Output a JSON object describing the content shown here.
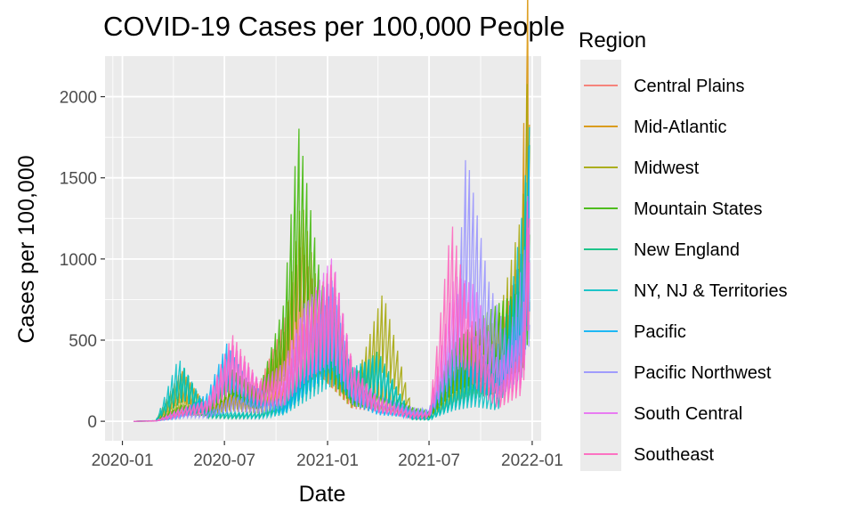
{
  "chart_data": {
    "type": "line",
    "title": "COVID-19 Cases per 100,000 People",
    "xlabel": "Date",
    "ylabel": "Cases per 100,000",
    "x_range": [
      "2019-12-01",
      "2022-01-17"
    ],
    "ylim": [
      -120,
      2250
    ],
    "x_ticks": [
      "2020-01",
      "2020-07",
      "2021-01",
      "2021-07",
      "2022-01"
    ],
    "y_ticks": [
      0,
      500,
      1000,
      1500,
      2000
    ],
    "grid": true,
    "legend_title": "Region",
    "legend_position": "right",
    "series": [
      {
        "name": "Central Plains",
        "color": "#F8766D",
        "points": [
          [
            "2020-01-21",
            0
          ],
          [
            "2020-03-01",
            2
          ],
          [
            "2020-04-15",
            60
          ],
          [
            "2020-06-01",
            50
          ],
          [
            "2020-07-15",
            180
          ],
          [
            "2020-09-01",
            160
          ],
          [
            "2020-10-15",
            420
          ],
          [
            "2020-11-15",
            750
          ],
          [
            "2020-12-20",
            500
          ],
          [
            "2021-02-15",
            140
          ],
          [
            "2021-04-10",
            100
          ],
          [
            "2021-06-01",
            45
          ],
          [
            "2021-07-01",
            30
          ],
          [
            "2021-08-15",
            380
          ],
          [
            "2021-09-20",
            380
          ],
          [
            "2021-11-01",
            330
          ],
          [
            "2021-12-15",
            750
          ],
          [
            "2021-12-27",
            1050
          ]
        ]
      },
      {
        "name": "Mid-Atlantic",
        "color": "#D89000",
        "points": [
          [
            "2020-01-21",
            0
          ],
          [
            "2020-03-01",
            3
          ],
          [
            "2020-04-15",
            220
          ],
          [
            "2020-06-01",
            60
          ],
          [
            "2020-07-15",
            110
          ],
          [
            "2020-09-01",
            90
          ],
          [
            "2020-10-15",
            180
          ],
          [
            "2020-11-20",
            400
          ],
          [
            "2021-01-10",
            620
          ],
          [
            "2021-02-15",
            230
          ],
          [
            "2021-04-01",
            170
          ],
          [
            "2021-06-01",
            40
          ],
          [
            "2021-07-01",
            30
          ],
          [
            "2021-08-15",
            220
          ],
          [
            "2021-09-20",
            310
          ],
          [
            "2021-11-01",
            280
          ],
          [
            "2021-12-10",
            650
          ],
          [
            "2021-12-27",
            2150
          ]
        ]
      },
      {
        "name": "Midwest",
        "color": "#A3A500",
        "points": [
          [
            "2020-01-21",
            0
          ],
          [
            "2020-03-01",
            2
          ],
          [
            "2020-04-15",
            110
          ],
          [
            "2020-06-01",
            60
          ],
          [
            "2020-07-15",
            130
          ],
          [
            "2020-09-01",
            140
          ],
          [
            "2020-10-15",
            380
          ],
          [
            "2020-11-15",
            950
          ],
          [
            "2020-12-20",
            500
          ],
          [
            "2021-02-15",
            130
          ],
          [
            "2021-04-10",
            550
          ],
          [
            "2021-06-01",
            50
          ],
          [
            "2021-07-01",
            30
          ],
          [
            "2021-08-15",
            230
          ],
          [
            "2021-09-20",
            380
          ],
          [
            "2021-11-01",
            430
          ],
          [
            "2021-12-15",
            900
          ],
          [
            "2021-12-27",
            1700
          ]
        ]
      },
      {
        "name": "Mountain States",
        "color": "#39B600",
        "points": [
          [
            "2020-01-21",
            0
          ],
          [
            "2020-03-01",
            2
          ],
          [
            "2020-04-15",
            70
          ],
          [
            "2020-06-01",
            60
          ],
          [
            "2020-07-15",
            220
          ],
          [
            "2020-09-01",
            130
          ],
          [
            "2020-10-15",
            500
          ],
          [
            "2020-11-10",
            1260
          ],
          [
            "2020-12-20",
            600
          ],
          [
            "2021-02-15",
            170
          ],
          [
            "2021-04-10",
            120
          ],
          [
            "2021-06-01",
            60
          ],
          [
            "2021-07-01",
            40
          ],
          [
            "2021-08-15",
            330
          ],
          [
            "2021-09-20",
            420
          ],
          [
            "2021-11-01",
            500
          ],
          [
            "2021-12-15",
            560
          ],
          [
            "2021-12-27",
            1000
          ]
        ]
      },
      {
        "name": "New England",
        "color": "#00BF7D",
        "points": [
          [
            "2020-01-21",
            0
          ],
          [
            "2020-03-01",
            3
          ],
          [
            "2020-04-20",
            230
          ],
          [
            "2020-06-01",
            40
          ],
          [
            "2020-07-15",
            30
          ],
          [
            "2020-09-01",
            40
          ],
          [
            "2020-10-15",
            110
          ],
          [
            "2020-12-01",
            330
          ],
          [
            "2021-01-10",
            480
          ],
          [
            "2021-02-15",
            200
          ],
          [
            "2021-04-01",
            300
          ],
          [
            "2021-06-01",
            20
          ],
          [
            "2021-07-01",
            15
          ],
          [
            "2021-08-15",
            150
          ],
          [
            "2021-09-20",
            250
          ],
          [
            "2021-11-01",
            320
          ],
          [
            "2021-12-15",
            720
          ],
          [
            "2021-12-27",
            1310
          ]
        ]
      },
      {
        "name": "NY, NJ & Territories",
        "color": "#00BFC4",
        "points": [
          [
            "2020-01-21",
            0
          ],
          [
            "2020-03-01",
            3
          ],
          [
            "2020-04-10",
            270
          ],
          [
            "2020-06-01",
            50
          ],
          [
            "2020-07-15",
            40
          ],
          [
            "2020-09-01",
            30
          ],
          [
            "2020-10-15",
            70
          ],
          [
            "2020-12-01",
            250
          ],
          [
            "2021-01-10",
            400
          ],
          [
            "2021-02-15",
            230
          ],
          [
            "2021-04-01",
            280
          ],
          [
            "2021-06-01",
            25
          ],
          [
            "2021-07-01",
            15
          ],
          [
            "2021-08-15",
            120
          ],
          [
            "2021-09-20",
            160
          ],
          [
            "2021-11-01",
            120
          ],
          [
            "2021-12-15",
            900
          ],
          [
            "2021-12-27",
            1250
          ]
        ]
      },
      {
        "name": "Pacific",
        "color": "#00B0F6",
        "points": [
          [
            "2020-01-21",
            0
          ],
          [
            "2020-03-01",
            2
          ],
          [
            "2020-04-15",
            40
          ],
          [
            "2020-06-01",
            120
          ],
          [
            "2020-07-05",
            330
          ],
          [
            "2020-08-15",
            160
          ],
          [
            "2020-10-15",
            80
          ],
          [
            "2020-12-01",
            350
          ],
          [
            "2021-01-10",
            570
          ],
          [
            "2021-02-15",
            180
          ],
          [
            "2021-04-01",
            70
          ],
          [
            "2021-06-01",
            40
          ],
          [
            "2021-07-01",
            50
          ],
          [
            "2021-08-15",
            330
          ],
          [
            "2021-09-20",
            360
          ],
          [
            "2021-11-01",
            250
          ],
          [
            "2021-12-15",
            500
          ],
          [
            "2021-12-27",
            1230
          ]
        ]
      },
      {
        "name": "Pacific Northwest",
        "color": "#9590FF",
        "points": [
          [
            "2020-01-21",
            0
          ],
          [
            "2020-03-01",
            2
          ],
          [
            "2020-04-15",
            40
          ],
          [
            "2020-06-01",
            40
          ],
          [
            "2020-07-15",
            110
          ],
          [
            "2020-09-01",
            80
          ],
          [
            "2020-10-15",
            150
          ],
          [
            "2020-11-20",
            500
          ],
          [
            "2021-01-10",
            600
          ],
          [
            "2021-02-15",
            180
          ],
          [
            "2021-04-01",
            110
          ],
          [
            "2021-06-01",
            60
          ],
          [
            "2021-07-01",
            50
          ],
          [
            "2021-08-20",
            500
          ],
          [
            "2021-09-05",
            1150
          ],
          [
            "2021-10-15",
            600
          ],
          [
            "2021-11-20",
            350
          ],
          [
            "2021-12-27",
            850
          ]
        ]
      },
      {
        "name": "South Central",
        "color": "#E76BF3",
        "points": [
          [
            "2020-01-21",
            0
          ],
          [
            "2020-03-01",
            2
          ],
          [
            "2020-04-15",
            60
          ],
          [
            "2020-06-01",
            90
          ],
          [
            "2020-07-15",
            330
          ],
          [
            "2020-09-01",
            170
          ],
          [
            "2020-10-15",
            250
          ],
          [
            "2020-11-20",
            480
          ],
          [
            "2021-01-10",
            700
          ],
          [
            "2021-02-15",
            240
          ],
          [
            "2021-04-01",
            100
          ],
          [
            "2021-06-01",
            40
          ],
          [
            "2021-07-01",
            40
          ],
          [
            "2021-08-15",
            620
          ],
          [
            "2021-09-20",
            580
          ],
          [
            "2021-11-01",
            250
          ],
          [
            "2021-12-15",
            380
          ],
          [
            "2021-12-27",
            1150
          ]
        ]
      },
      {
        "name": "Southeast",
        "color": "#FF62BC",
        "points": [
          [
            "2020-01-21",
            0
          ],
          [
            "2020-03-01",
            2
          ],
          [
            "2020-04-15",
            50
          ],
          [
            "2020-06-01",
            90
          ],
          [
            "2020-07-15",
            370
          ],
          [
            "2020-09-01",
            170
          ],
          [
            "2020-10-15",
            170
          ],
          [
            "2020-11-20",
            420
          ],
          [
            "2021-01-10",
            680
          ],
          [
            "2021-02-15",
            240
          ],
          [
            "2021-04-01",
            90
          ],
          [
            "2021-06-01",
            35
          ],
          [
            "2021-07-01",
            35
          ],
          [
            "2021-08-10",
            850
          ],
          [
            "2021-09-20",
            380
          ],
          [
            "2021-11-01",
            140
          ],
          [
            "2021-12-15",
            300
          ],
          [
            "2021-12-27",
            1250
          ]
        ]
      }
    ]
  }
}
